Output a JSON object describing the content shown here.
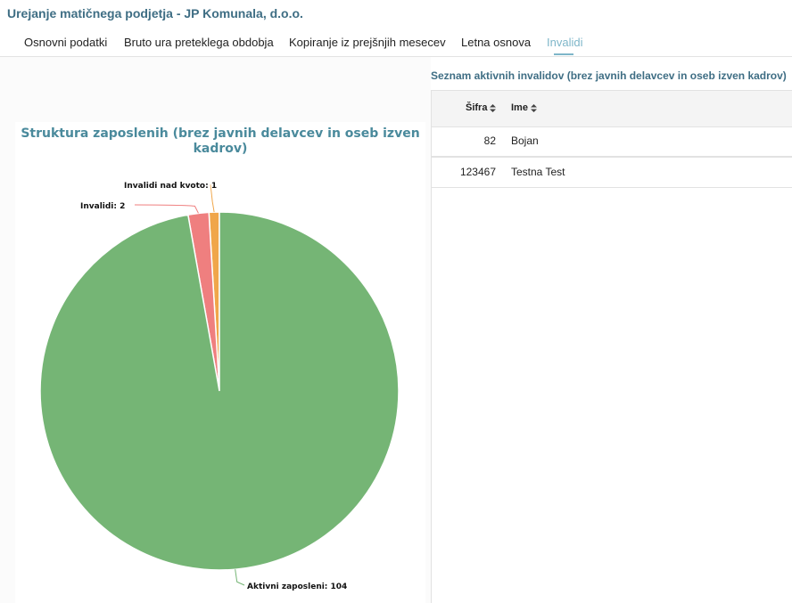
{
  "header": {
    "title": "Urejanje matičnega podjetja - JP Komunala, d.o.o."
  },
  "tabs": [
    {
      "label": "Osnovni podatki",
      "active": false
    },
    {
      "label": "Bruto ura preteklega obdobja",
      "active": false
    },
    {
      "label": "Kopiranje iz prejšnjih mesecev",
      "active": false
    },
    {
      "label": "Letna osnova",
      "active": false
    },
    {
      "label": "Invalidi",
      "active": true
    }
  ],
  "list": {
    "title": "Seznam aktivnih invalidov (brez javnih delavcev in oseb izven kadrov)",
    "columns": [
      "Šifra",
      "Ime"
    ],
    "rows": [
      {
        "sifra": "82",
        "ime": "Bojan"
      },
      {
        "sifra": "123467",
        "ime": "Testna Test"
      }
    ]
  },
  "chart_data": {
    "type": "pie",
    "title": "Struktura zaposlenih (brez javnih delavcev in oseb izven kadrov)",
    "slices": [
      {
        "label": "Invalidi nad kvoto",
        "value": 1,
        "color": "#f0a64a"
      },
      {
        "label": "Invalidi",
        "value": 2,
        "color": "#ef7f7f"
      },
      {
        "label": "Aktivni zaposleni",
        "value": 104,
        "color": "#75b575"
      }
    ],
    "data_labels": [
      "Invalidi nad kvoto: 1",
      "Invalidi: 2",
      "Aktivni zaposleni: 104"
    ]
  }
}
